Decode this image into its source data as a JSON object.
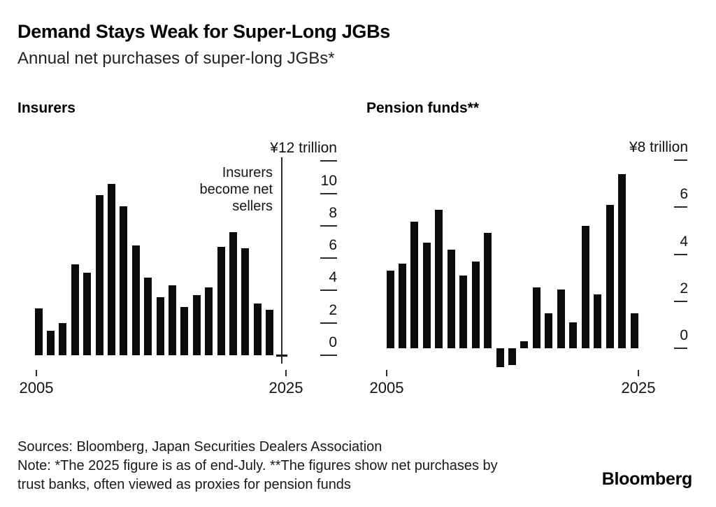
{
  "header": {
    "title": "Demand Stays Weak for Super-Long JGBs",
    "subtitle": "Annual net purchases of super-long JGBs*"
  },
  "footer": {
    "sources": "Sources: Bloomberg, Japan Securities Dealers Association",
    "note_line1": "Note: *The 2025 figure is as of end-July. **The figures show net purchases by",
    "note_line2": "trust banks, often viewed as proxies for pension funds",
    "brand": "Bloomberg"
  },
  "colors": {
    "background": "#ffffff",
    "ink": "#0b0b0b"
  },
  "chart_data": [
    {
      "type": "bar",
      "title": "Insurers",
      "unit": "yen trillion",
      "categories": [
        2005,
        2006,
        2007,
        2008,
        2009,
        2010,
        2011,
        2012,
        2013,
        2014,
        2015,
        2016,
        2017,
        2018,
        2019,
        2020,
        2021,
        2022,
        2023,
        2024,
        2025
      ],
      "values": [
        2.9,
        1.5,
        2.0,
        5.6,
        5.1,
        9.9,
        10.6,
        9.2,
        6.8,
        4.8,
        3.6,
        4.3,
        3.0,
        3.7,
        4.2,
        6.7,
        7.6,
        6.6,
        3.2,
        2.8,
        -0.1
      ],
      "ylim": [
        -0.5,
        12
      ],
      "grid": false,
      "y_ticks": [
        {
          "value": 12,
          "label": "¥12 trillion"
        },
        {
          "value": 10,
          "label": "10"
        },
        {
          "value": 8,
          "label": "8"
        },
        {
          "value": 6,
          "label": "6"
        },
        {
          "value": 4,
          "label": "4"
        },
        {
          "value": 2,
          "label": "2"
        },
        {
          "value": 0,
          "label": "0"
        }
      ],
      "x_ticks": [
        {
          "year": 2005,
          "label": "2005"
        },
        {
          "year": 2025,
          "label": "2025"
        }
      ],
      "annotation_lines": [
        "Insurers",
        "become net",
        "sellers"
      ]
    },
    {
      "type": "bar",
      "title": "Pension funds**",
      "unit": "yen trillion",
      "categories": [
        2005,
        2006,
        2007,
        2008,
        2009,
        2010,
        2011,
        2012,
        2013,
        2014,
        2015,
        2016,
        2017,
        2018,
        2019,
        2020,
        2021,
        2022,
        2023,
        2024,
        2025
      ],
      "values": [
        3.3,
        3.6,
        5.4,
        4.5,
        5.9,
        4.2,
        3.1,
        3.7,
        4.9,
        -0.8,
        -0.7,
        0.3,
        2.6,
        1.5,
        2.5,
        1.1,
        5.2,
        2.3,
        6.1,
        7.4,
        1.5
      ],
      "ylim": [
        -1.2,
        8
      ],
      "grid": false,
      "y_ticks": [
        {
          "value": 8,
          "label": "¥8 trillion"
        },
        {
          "value": 6,
          "label": "6"
        },
        {
          "value": 4,
          "label": "4"
        },
        {
          "value": 2,
          "label": "2"
        },
        {
          "value": 0,
          "label": "0"
        }
      ],
      "x_ticks": [
        {
          "year": 2005,
          "label": "2005"
        },
        {
          "year": 2025,
          "label": "2025"
        }
      ]
    }
  ]
}
